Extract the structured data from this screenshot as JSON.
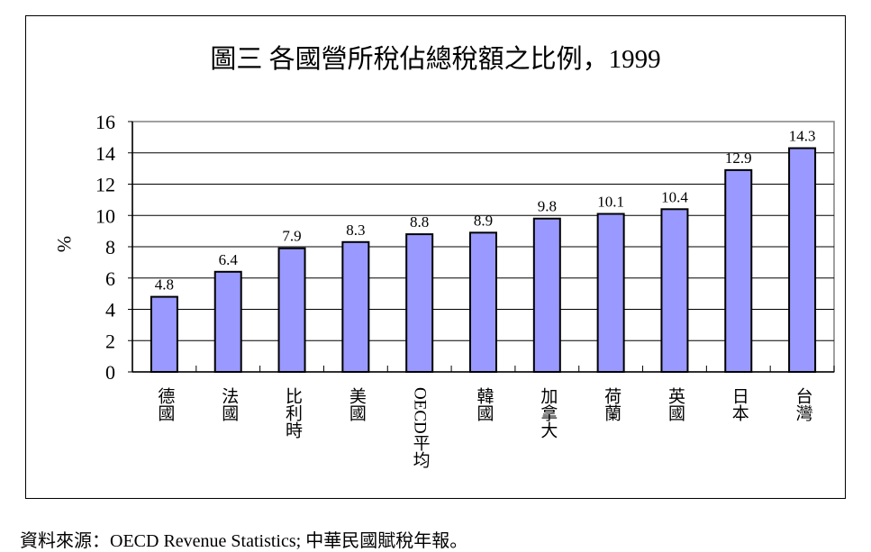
{
  "chart_data": {
    "type": "bar",
    "title": "圖三 各國營所稅佔總稅額之比例，1999",
    "xlabel": "",
    "ylabel": "%",
    "categories": [
      "德國",
      "法國",
      "比利時",
      "美國",
      "OECD平均",
      "韓國",
      "加拿大",
      "荷蘭",
      "英國",
      "日本",
      "台灣"
    ],
    "values": [
      4.8,
      6.4,
      7.9,
      8.3,
      8.8,
      8.9,
      9.8,
      10.1,
      10.4,
      12.9,
      14.3
    ],
    "value_labels": [
      "4.8",
      "6.4",
      "7.9",
      "8.3",
      "8.8",
      "8.9",
      "9.8",
      "10.1",
      "10.4",
      "12.9",
      "14.3"
    ],
    "ylim": [
      0,
      16
    ],
    "yticks": [
      "0",
      "2",
      "4",
      "6",
      "8",
      "10",
      "12",
      "14",
      "16"
    ],
    "grid": true,
    "bar_color": "#9999ff",
    "bar_edge_color": "#000000"
  },
  "source_note": "資料來源：OECD Revenue Statistics; 中華民國賦稅年報。"
}
